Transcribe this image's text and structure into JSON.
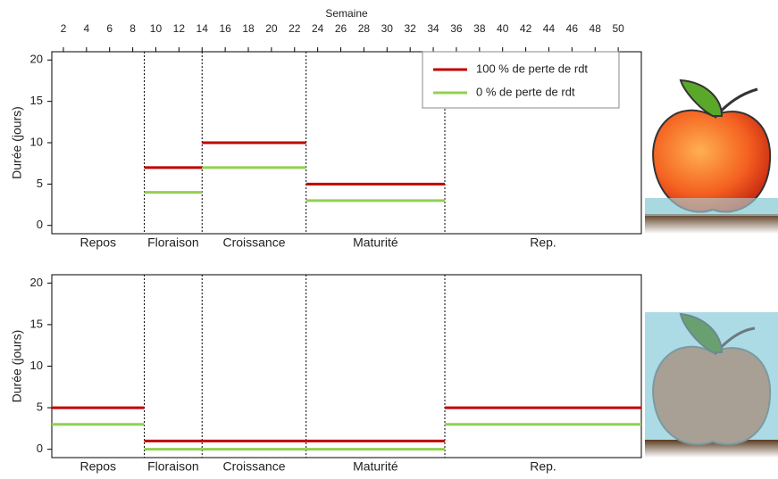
{
  "chart_data": [
    {
      "type": "step",
      "x_label": "Semaine",
      "y_label": "Durée (jours)",
      "categories": [
        "Repos",
        "Floraison",
        "Croissance",
        "Maturité",
        "Rep."
      ],
      "bins": [
        1,
        9,
        14,
        23,
        35,
        52
      ],
      "series": [
        {
          "name": "100 % de perte de rdt",
          "color": "#c00000",
          "values": [
            null,
            7,
            10,
            5,
            null
          ]
        },
        {
          "name": "0 % de perte de rdt",
          "color": "#92d050",
          "values": [
            null,
            4,
            7,
            3,
            null
          ]
        }
      ],
      "xlim": [
        1,
        52
      ],
      "xticks": [
        2,
        4,
        6,
        8,
        10,
        12,
        14,
        16,
        18,
        20,
        22,
        24,
        26,
        28,
        30,
        32,
        34,
        36,
        38,
        40,
        42,
        44,
        46,
        48,
        50
      ],
      "ylim": [
        -1,
        21
      ],
      "yticks": [
        0,
        5,
        10,
        15,
        20
      ],
      "legend": "top-right"
    },
    {
      "type": "step",
      "y_label": "Durée (jours)",
      "categories": [
        "Repos",
        "Floraison",
        "Croissance",
        "Maturité",
        "Rep."
      ],
      "bins": [
        1,
        9,
        14,
        23,
        35,
        52
      ],
      "series": [
        {
          "color": "#c00000",
          "values": [
            5,
            1,
            1,
            1,
            5
          ]
        },
        {
          "color": "#92d050",
          "values": [
            3,
            0,
            0,
            0,
            3
          ]
        }
      ],
      "xlim": [
        1,
        52
      ],
      "ylim": [
        -1,
        21
      ],
      "yticks": [
        0,
        5,
        10,
        15,
        20
      ]
    }
  ]
}
